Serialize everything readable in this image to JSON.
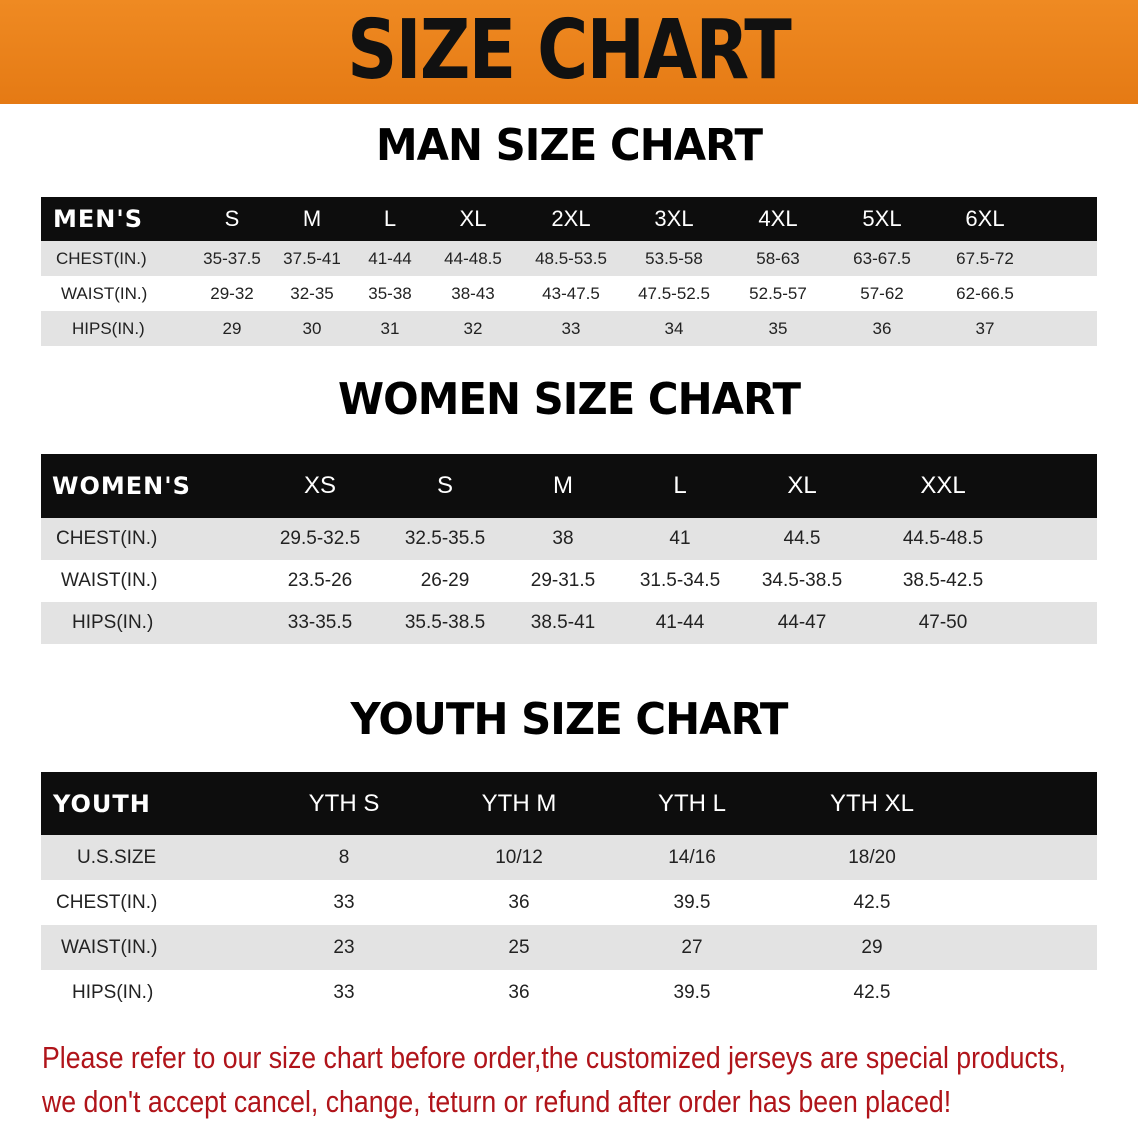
{
  "banner_title": "SIZE CHART",
  "men": {
    "title": "MAN SIZE CHART",
    "header_label": "MEN'S",
    "sizes": [
      "S",
      "M",
      "L",
      "XL",
      "2XL",
      "3XL",
      "4XL",
      "5XL",
      "6XL"
    ],
    "rows": [
      {
        "label": "CHEST(IN.)",
        "values": [
          "35-37.5",
          "37.5-41",
          "41-44",
          "44-48.5",
          "48.5-53.5",
          "53.5-58",
          "58-63",
          "63-67.5",
          "67.5-72"
        ]
      },
      {
        "label": "WAIST(IN.)",
        "values": [
          "29-32",
          "32-35",
          "35-38",
          "38-43",
          "43-47.5",
          "47.5-52.5",
          "52.5-57",
          "57-62",
          "62-66.5"
        ]
      },
      {
        "label": "HIPS(IN.)",
        "values": [
          "29",
          "30",
          "31",
          "32",
          "33",
          "34",
          "35",
          "36",
          "37"
        ]
      }
    ]
  },
  "women": {
    "title": "WOMEN SIZE CHART",
    "header_label": "WOMEN'S",
    "sizes": [
      "XS",
      "S",
      "M",
      "L",
      "XL",
      "XXL"
    ],
    "rows": [
      {
        "label": "CHEST(IN.)",
        "values": [
          "29.5-32.5",
          "32.5-35.5",
          "38",
          "41",
          "44.5",
          "44.5-48.5"
        ]
      },
      {
        "label": "WAIST(IN.)",
        "values": [
          "23.5-26",
          "26-29",
          "29-31.5",
          "31.5-34.5",
          "34.5-38.5",
          "38.5-42.5"
        ]
      },
      {
        "label": "HIPS(IN.)",
        "values": [
          "33-35.5",
          "35.5-38.5",
          "38.5-41",
          "41-44",
          "44-47",
          "47-50"
        ]
      }
    ]
  },
  "youth": {
    "title": "YOUTH SIZE CHART",
    "header_label": "YOUTH",
    "sizes": [
      "YTH S",
      "YTH M",
      "YTH L",
      "YTH XL"
    ],
    "rows": [
      {
        "label": "U.S.SIZE",
        "values": [
          "8",
          "10/12",
          "14/16",
          "18/20"
        ]
      },
      {
        "label": "CHEST(IN.)",
        "values": [
          "33",
          "36",
          "39.5",
          "42.5"
        ]
      },
      {
        "label": "WAIST(IN.)",
        "values": [
          "23",
          "25",
          "27",
          "29"
        ]
      },
      {
        "label": "HIPS(IN.)",
        "values": [
          "33",
          "36",
          "39.5",
          "42.5"
        ]
      }
    ]
  },
  "notice": [
    "Please refer to our size chart before order,the customized jerseys are special products,",
    "we don't accept cancel, change, teturn or refund after order has been placed!"
  ],
  "colors": {
    "banner": "#e8821e",
    "header_row": "#0d0d0d",
    "stripe": "#e3e3e3",
    "notice": "#b0141a"
  }
}
